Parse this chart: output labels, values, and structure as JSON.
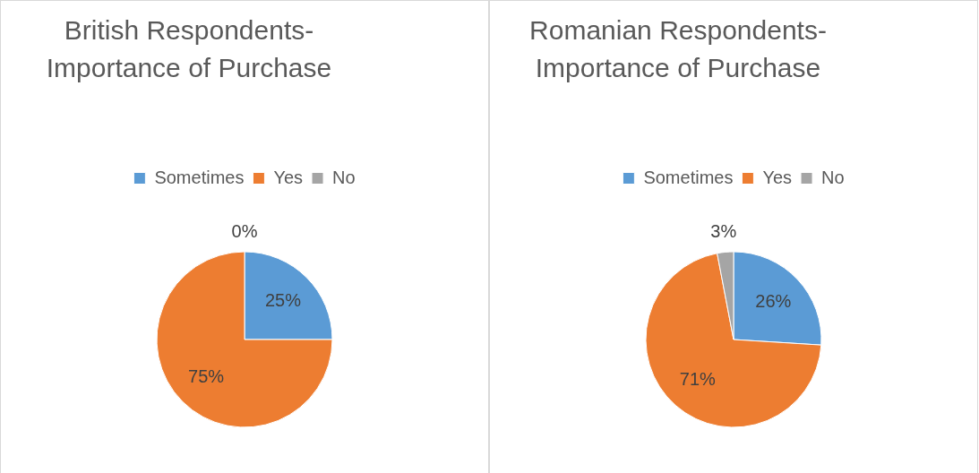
{
  "chart_data": [
    {
      "type": "pie",
      "title": "British Respondents- Importance of Purchase",
      "categories": [
        "Sometimes",
        "Yes",
        "No"
      ],
      "values": [
        25,
        75,
        0
      ],
      "colors": [
        "#5b9bd5",
        "#ed7d31",
        "#a5a5a5"
      ],
      "value_labels": [
        "25%",
        "75%",
        "0%"
      ],
      "legend": "top"
    },
    {
      "type": "pie",
      "title": "Romanian Respondents- Importance of Purchase",
      "categories": [
        "Sometimes",
        "Yes",
        "No"
      ],
      "values": [
        26,
        71,
        3
      ],
      "colors": [
        "#5b9bd5",
        "#ed7d31",
        "#a5a5a5"
      ],
      "value_labels": [
        "26%",
        "71%",
        "3%"
      ],
      "legend": "top"
    }
  ]
}
